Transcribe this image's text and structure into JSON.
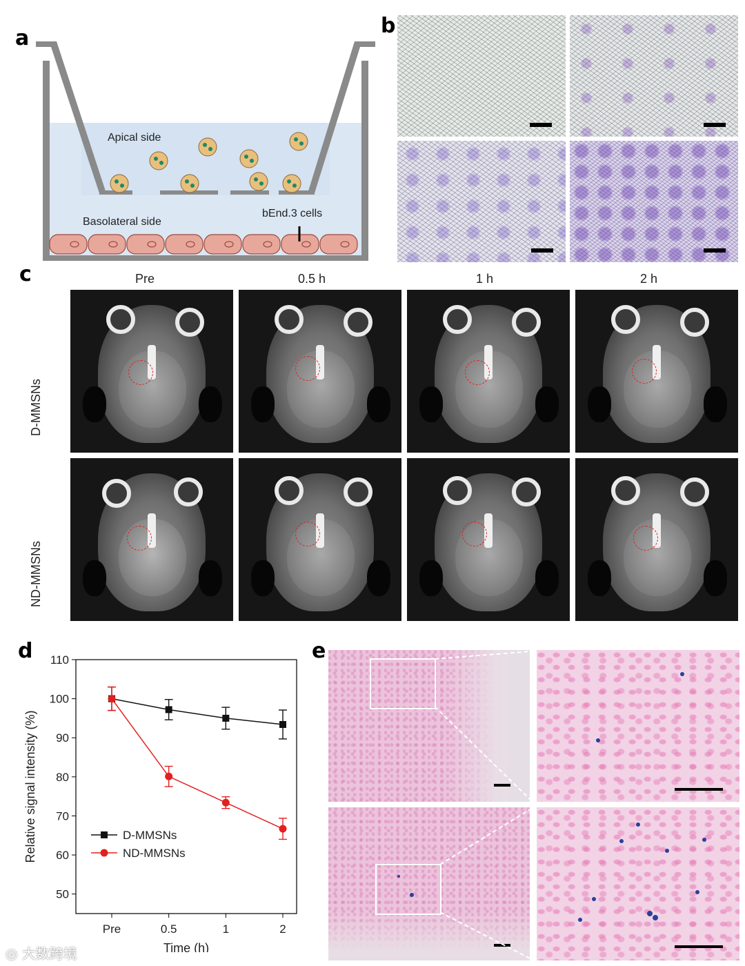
{
  "panel_letters": {
    "a": "a",
    "b": "b",
    "c": "c",
    "d": "d",
    "e": "e"
  },
  "panel_a": {
    "apical_label": "Apical side",
    "basolateral_label": "Basolateral side",
    "cells_label": "bEnd.3 cells"
  },
  "panel_c": {
    "columns": [
      "Pre",
      "0.5 h",
      "1 h",
      "2 h"
    ],
    "rows": [
      "D-MMSNs",
      "ND-MMSNs"
    ]
  },
  "watermark": "大数跨境",
  "colors": {
    "d_series": "#111111",
    "nd_series": "#e32020",
    "plate_blue": "#dce8f4",
    "cell_fill": "#e8a79b"
  },
  "chart_data": {
    "type": "line",
    "title": "",
    "xlabel": "Time (h)",
    "ylabel": "Relative signal intensity (%)",
    "categories": [
      "Pre",
      "0.5",
      "1",
      "2"
    ],
    "ylim": [
      45,
      110
    ],
    "yticks": [
      50,
      60,
      70,
      80,
      90,
      100,
      110
    ],
    "legend_position": "lower-left",
    "series": [
      {
        "name": "D-MMSNs",
        "marker": "square",
        "color": "#111111",
        "values": [
          100,
          97.2,
          95,
          93.4
        ],
        "errors": [
          3,
          2.6,
          2.8,
          3.7
        ]
      },
      {
        "name": "ND-MMSNs",
        "marker": "circle",
        "color": "#e32020",
        "values": [
          100,
          80.1,
          73.4,
          66.7
        ],
        "errors": [
          3,
          2.6,
          1.5,
          2.7
        ]
      }
    ]
  }
}
